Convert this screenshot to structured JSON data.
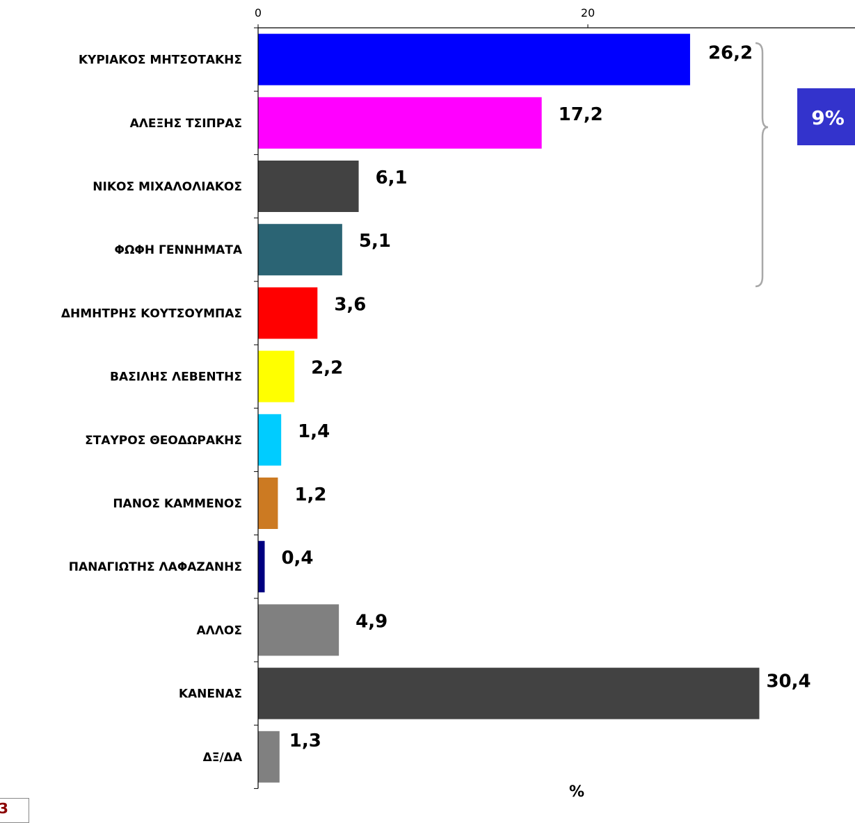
{
  "chart_data": {
    "type": "bar",
    "orientation": "horizontal",
    "categories": [
      "ΚΥΡΙΑΚΟΣ  ΜΗΤΣΟΤΑΚΗΣ",
      "ΑΛΕΞΗΣ ΤΣΙΠΡΑΣ",
      "ΝΙΚΟΣ  ΜΙΧΑΛΟΛΙΑΚΟΣ",
      "ΦΩΦΗ ΓΕΝΝΗΜΑΤΑ",
      "ΔΗΜΗΤΡΗΣ ΚΟΥΤΣΟΥΜΠΑΣ",
      "ΒΑΣΙΛΗΣ ΛΕΒΕΝΤΗΣ",
      "ΣΤΑΥΡΟΣ ΘΕΟΔΩΡΑΚΗΣ",
      "ΠΑΝΟΣ ΚΑΜΜΕΝΟΣ",
      "ΠΑΝΑΓΙΩΤΗΣ ΛΑΦΑΖΑΝΗΣ",
      "ΑΛΛΟΣ",
      "ΚΑΝΕΝΑΣ",
      "ΔΞ/ΔΑ"
    ],
    "values": [
      26.2,
      17.2,
      6.1,
      5.1,
      3.6,
      2.2,
      1.4,
      1.2,
      0.4,
      4.9,
      30.4,
      1.3
    ],
    "value_labels": [
      "26,2",
      "17,2",
      "6,1",
      "5,1",
      "3,6",
      "2,2",
      "1,4",
      "1,2",
      "0,4",
      "4,9",
      "30,4",
      "1,3"
    ],
    "colors": [
      "#0000ff",
      "#ff00ff",
      "#424242",
      "#2b6474",
      "#ff0000",
      "#ffff00",
      "#00ccff",
      "#cc7a22",
      "#000080",
      "#808080",
      "#424242",
      "#808080"
    ],
    "xaxis": {
      "position": "top",
      "ticks": [
        0,
        20
      ],
      "tick_labels": [
        "0",
        "20"
      ],
      "xlim": [
        0,
        34
      ]
    },
    "xlabel": "%",
    "grid": false,
    "annotation": {
      "text": "9%",
      "brackets": [
        0,
        1
      ],
      "color": "#3333cc"
    }
  },
  "page_number": "3"
}
